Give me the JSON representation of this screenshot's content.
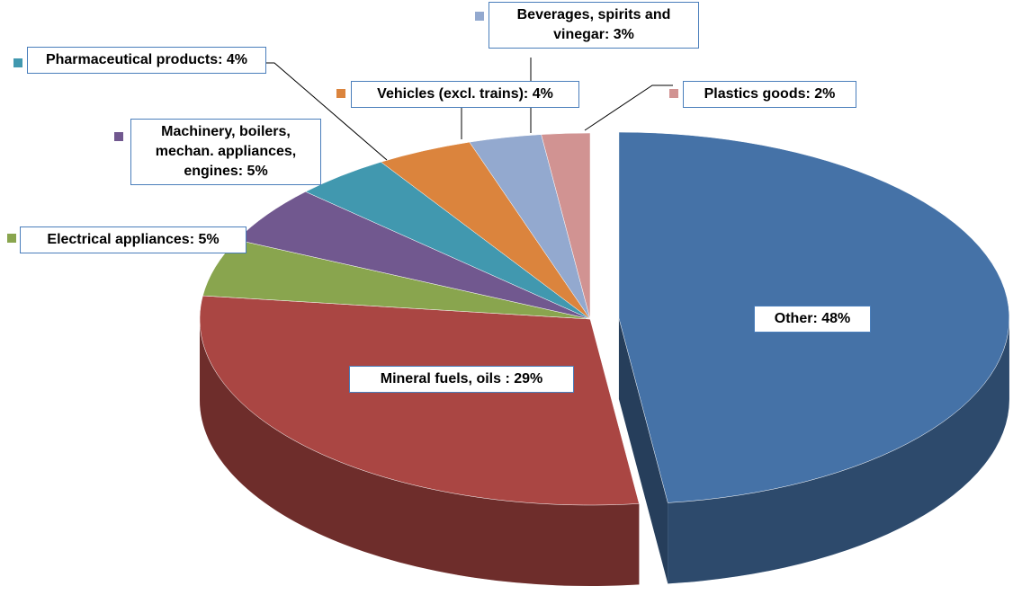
{
  "chart_data": {
    "type": "pie",
    "values": [
      48,
      29,
      5,
      5,
      4,
      4,
      3,
      2
    ],
    "value_labels": [
      "Other: 48%",
      "Mineral fuels, oils : 29%",
      "Electrical appliances: 5%",
      "Machinery, boilers, mechan. appliances, engines: 5%",
      "Pharmaceutical products: 4%",
      "Vehicles (excl. trains): 4%",
      "Beverages, spirits and vinegar: 3%",
      "Plastics goods: 2%"
    ],
    "colors": [
      "#4572a7",
      "#aa4643",
      "#89a54e",
      "#71588f",
      "#4198af",
      "#db843d",
      "#93a9cf",
      "#d19392"
    ],
    "exploded": [
      0
    ]
  }
}
